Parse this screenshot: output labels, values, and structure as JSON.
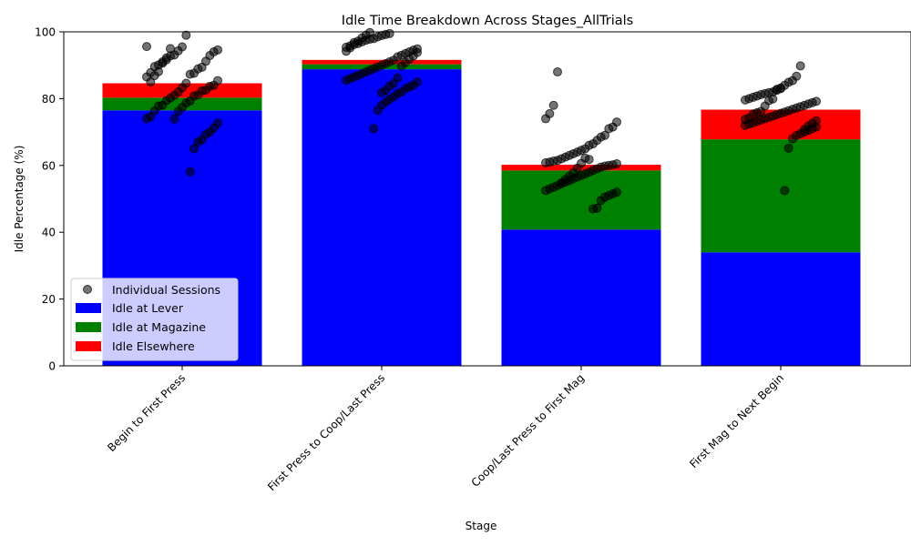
{
  "chart_data": {
    "type": "bar",
    "stacked": true,
    "title": "Idle Time Breakdown Across Stages_AllTrials",
    "xlabel": "Stage",
    "ylabel": "Idle Percentage (%)",
    "ylim": [
      0,
      100
    ],
    "yticks": [
      0,
      20,
      40,
      60,
      80,
      100
    ],
    "legend_position": "lower-left",
    "categories": [
      "Begin to First Press",
      "First Press to Coop/Last Press",
      "Coop/Last Press to First Mag",
      "First Mag to Next Begin"
    ],
    "series": [
      {
        "name": "Idle at Lever",
        "color": "#0000ff",
        "values": [
          76.5,
          88.8,
          40.8,
          34.0
        ]
      },
      {
        "name": "Idle at Magazine",
        "color": "#008000",
        "values": [
          3.8,
          1.5,
          17.7,
          33.8
        ]
      },
      {
        "name": "Idle Elsewhere",
        "color": "#ff0000",
        "values": [
          4.3,
          1.3,
          1.7,
          8.9
        ]
      }
    ],
    "scatter": {
      "name": "Individual Sessions",
      "color": "#000000",
      "points": [
        [
          95.6,
          94.6,
          94.0,
          92.9,
          91.2,
          89.4,
          88.9,
          87.6,
          87.3,
          84.6,
          83.3,
          82.0,
          81.0,
          80.2,
          79.4,
          78.0,
          77.8,
          76.3,
          74.6,
          74.0,
          72.7,
          71.2,
          70.0,
          69.3,
          67.7,
          67.0,
          65.0,
          58.1,
          99.0,
          95.5,
          94.3,
          93.1,
          92.8,
          91.6,
          90.6,
          90.1,
          89.6,
          87.8,
          86.5,
          85.4,
          84.0,
          83.7,
          82.6,
          82.3,
          81.1,
          80.8,
          79.3,
          78.7,
          77.4,
          76.2,
          73.9,
          95.0,
          92.2,
          91.0,
          88.1,
          86.9,
          85.0
        ],
        [
          99.5,
          99.2,
          98.9,
          98.5,
          98.0,
          97.8,
          97.5,
          97.0,
          96.5,
          96.2,
          95.8,
          95.4,
          94.9,
          94.5,
          94.0,
          93.5,
          93.0,
          92.5,
          91.5,
          91.0,
          90.5,
          90.0,
          89.5,
          89.0,
          88.5,
          88.0,
          87.5,
          87.0,
          86.5,
          86.0,
          85.5,
          85.0,
          84.0,
          83.5,
          83.0,
          82.0,
          81.5,
          80.5,
          79.8,
          79.0,
          78.0,
          76.5,
          71.0,
          99.8,
          99.0,
          98.2,
          97.2,
          96.8,
          95.2,
          94.2,
          93.8,
          92.8,
          91.8,
          90.8,
          89.8,
          86.2,
          84.5,
          83.8,
          82.5,
          81.8
        ],
        [
          88.0,
          78.0,
          75.5,
          74.0,
          73.0,
          71.5,
          71.0,
          69.0,
          68.5,
          67.5,
          66.5,
          66.0,
          65.0,
          64.5,
          64.0,
          63.5,
          63.0,
          62.5,
          62.0,
          61.5,
          61.3,
          61.0,
          60.8,
          60.5,
          60.2,
          60.0,
          59.8,
          59.5,
          59.0,
          58.5,
          58.0,
          57.5,
          57.0,
          56.5,
          56.0,
          55.5,
          55.0,
          54.5,
          54.0,
          53.5,
          53.0,
          52.5,
          52.0,
          51.5,
          51.0,
          50.5,
          49.5,
          47.2,
          47.0,
          61.8,
          62.2,
          60.6,
          59.2,
          57.8,
          56.8,
          55.8,
          54.8
        ],
        [
          89.8,
          86.7,
          85.4,
          84.9,
          84.0,
          83.0,
          82.5,
          82.0,
          81.8,
          81.5,
          81.2,
          80.8,
          80.4,
          80.0,
          79.6,
          79.2,
          78.8,
          78.4,
          78.0,
          77.6,
          77.2,
          76.8,
          76.4,
          76.0,
          75.6,
          75.2,
          74.8,
          74.4,
          74.0,
          73.6,
          73.2,
          72.8,
          72.4,
          72.0,
          71.5,
          71.0,
          70.5,
          70.0,
          69.5,
          69.0,
          68.0,
          65.2,
          52.5,
          83.2,
          82.8,
          79.9,
          79.4,
          77.8,
          76.2,
          75.8,
          75.4,
          74.2,
          73.8,
          73.4,
          72.6,
          71.8,
          70.8
        ]
      ]
    }
  }
}
